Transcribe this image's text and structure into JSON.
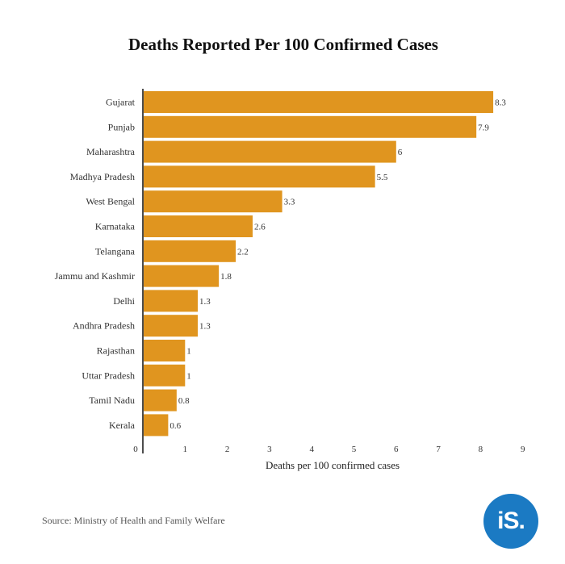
{
  "chart_data": {
    "type": "bar",
    "orientation": "horizontal",
    "title": "Deaths Reported Per 100 Confirmed Cases",
    "xlabel": "Deaths per 100 confirmed cases",
    "ylabel": "",
    "xlim": [
      0,
      9
    ],
    "xticks": [
      "0",
      "1",
      "2",
      "3",
      "4",
      "5",
      "6",
      "7",
      "8",
      "9"
    ],
    "grid": false,
    "bar_color": "#E0951F",
    "categories": [
      "Gujarat",
      "Punjab",
      "Maharashtra",
      "Madhya Pradesh",
      "West Bengal",
      "Karnataka",
      "Telangana",
      "Jammu and Kashmir",
      "Delhi",
      "Andhra Pradesh",
      "Rajasthan",
      "Uttar Pradesh",
      "Tamil Nadu",
      "Kerala"
    ],
    "values": [
      8.3,
      7.9,
      6,
      5.5,
      3.3,
      2.6,
      2.2,
      1.8,
      1.3,
      1.3,
      1,
      1,
      0.8,
      0.6
    ],
    "value_labels": [
      "8.3",
      "7.9",
      "6",
      "5.5",
      "3.3",
      "2.6",
      "2.2",
      "1.8",
      "1.3",
      "1.3",
      "1",
      "1",
      "0.8",
      "0.6"
    ]
  },
  "footer": {
    "source": "Source: Ministry of Health and Family Welfare",
    "logo_text": "iS.",
    "logo_color": "#1B7AC3"
  }
}
